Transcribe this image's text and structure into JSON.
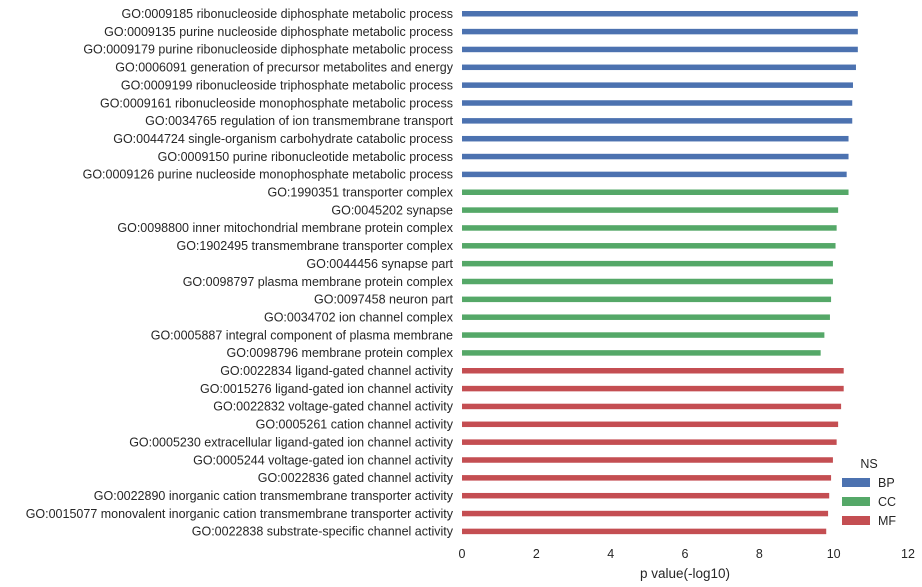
{
  "chart_data": {
    "type": "bar",
    "orientation": "horizontal",
    "xlabel": "p value(-log10)",
    "ylabel": "",
    "xlim": [
      0,
      12
    ],
    "xticks": [
      0,
      2,
      4,
      6,
      8,
      10,
      12
    ],
    "grid": false,
    "legend": {
      "title": "NS",
      "position": "bottom-right",
      "entries": [
        {
          "name": "BP",
          "color": "#4c72b0"
        },
        {
          "name": "CC",
          "color": "#55a868"
        },
        {
          "name": "MF",
          "color": "#c44e52"
        }
      ]
    },
    "bars": [
      {
        "label": "GO:0009185 ribonucleoside diphosphate metabolic process",
        "value": 10.65,
        "group": "BP"
      },
      {
        "label": "GO:0009135 purine nucleoside diphosphate metabolic process",
        "value": 10.65,
        "group": "BP"
      },
      {
        "label": "GO:0009179 purine ribonucleoside diphosphate metabolic process",
        "value": 10.65,
        "group": "BP"
      },
      {
        "label": "GO:0006091 generation of precursor metabolites and energy",
        "value": 10.6,
        "group": "BP"
      },
      {
        "label": "GO:0009199 ribonucleoside triphosphate metabolic process",
        "value": 10.52,
        "group": "BP"
      },
      {
        "label": "GO:0009161 ribonucleoside monophosphate metabolic process",
        "value": 10.5,
        "group": "BP"
      },
      {
        "label": "GO:0034765 regulation of ion transmembrane transport",
        "value": 10.5,
        "group": "BP"
      },
      {
        "label": "GO:0044724 single-organism carbohydrate catabolic process",
        "value": 10.4,
        "group": "BP"
      },
      {
        "label": "GO:0009150 purine ribonucleotide metabolic process",
        "value": 10.4,
        "group": "BP"
      },
      {
        "label": "GO:0009126 purine nucleoside monophosphate metabolic process",
        "value": 10.35,
        "group": "BP"
      },
      {
        "label": "GO:1990351 transporter complex",
        "value": 10.4,
        "group": "CC"
      },
      {
        "label": "GO:0045202 synapse",
        "value": 10.12,
        "group": "CC"
      },
      {
        "label": "GO:0098800 inner mitochondrial membrane protein complex",
        "value": 10.08,
        "group": "CC"
      },
      {
        "label": "GO:1902495 transmembrane transporter complex",
        "value": 10.05,
        "group": "CC"
      },
      {
        "label": "GO:0044456 synapse part",
        "value": 9.98,
        "group": "CC"
      },
      {
        "label": "GO:0098797 plasma membrane protein complex",
        "value": 9.98,
        "group": "CC"
      },
      {
        "label": "GO:0097458 neuron part",
        "value": 9.93,
        "group": "CC"
      },
      {
        "label": "GO:0034702 ion channel complex",
        "value": 9.9,
        "group": "CC"
      },
      {
        "label": "GO:0005887 integral component of plasma membrane",
        "value": 9.75,
        "group": "CC"
      },
      {
        "label": "GO:0098796 membrane protein complex",
        "value": 9.65,
        "group": "CC"
      },
      {
        "label": "GO:0022834 ligand-gated channel activity",
        "value": 10.27,
        "group": "MF"
      },
      {
        "label": "GO:0015276 ligand-gated ion channel activity",
        "value": 10.27,
        "group": "MF"
      },
      {
        "label": "GO:0022832 voltage-gated channel activity",
        "value": 10.2,
        "group": "MF"
      },
      {
        "label": "GO:0005261 cation channel activity",
        "value": 10.12,
        "group": "MF"
      },
      {
        "label": "GO:0005230 extracellular ligand-gated ion channel activity",
        "value": 10.08,
        "group": "MF"
      },
      {
        "label": "GO:0005244 voltage-gated ion channel activity",
        "value": 9.98,
        "group": "MF"
      },
      {
        "label": "GO:0022836 gated channel activity",
        "value": 9.93,
        "group": "MF"
      },
      {
        "label": "GO:0022890 inorganic cation transmembrane transporter activity",
        "value": 9.88,
        "group": "MF"
      },
      {
        "label": "GO:0015077 monovalent inorganic cation transmembrane transporter activity",
        "value": 9.85,
        "group": "MF"
      },
      {
        "label": "GO:0022838 substrate-specific channel activity",
        "value": 9.8,
        "group": "MF"
      }
    ]
  }
}
